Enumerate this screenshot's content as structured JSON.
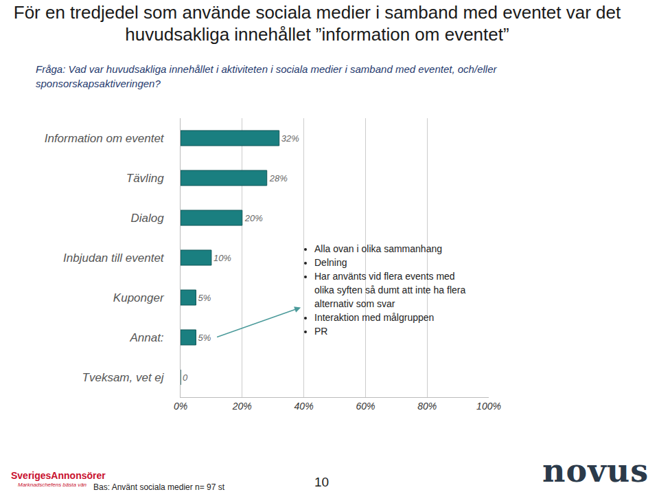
{
  "chart_data": {
    "type": "bar",
    "orientation": "horizontal",
    "title": "För en tredjedel som använde sociala medier i samband med eventet var det huvudsakliga innehållet ”information om eventet”",
    "subtitle": "Fråga: Vad var huvudsakliga innehållet i aktiviteten i sociala medier i samband med eventet, och/eller sponsorskapsaktiveringen?",
    "categories": [
      "Information om eventet",
      "Tävling",
      "Dialog",
      "Inbjudan till eventet",
      "Kuponger",
      "Annat:",
      "Tveksam, vet ej"
    ],
    "values": [
      32,
      28,
      20,
      10,
      5,
      5,
      0
    ],
    "value_labels": [
      "32%",
      "28%",
      "20%",
      "10%",
      "5%",
      "5%",
      "0"
    ],
    "data_labels": true,
    "color": "#1a7f80",
    "xlim": [
      0,
      100
    ],
    "xticks": [
      {
        "value": 0,
        "label": "0%"
      },
      {
        "value": 20,
        "label": "20%"
      },
      {
        "value": 40,
        "label": "40%"
      },
      {
        "value": 60,
        "label": "60%"
      },
      {
        "value": 80,
        "label": "80%"
      },
      {
        "value": 100,
        "label": "100%"
      }
    ],
    "grid": true,
    "notes": [
      "Alla ovan i olika sammanhang",
      "Delning",
      "Har använts vid flera events med olika syften så dumt att inte ha flera alternativ som svar",
      "Interaktion med målgruppen",
      "PR"
    ],
    "source": "Bas: Använt sociala medier n= 97 st",
    "page": "10",
    "logos": [
      "SverigesAnnonsörer",
      "Marknadschefens bästa vän",
      "novus"
    ]
  }
}
